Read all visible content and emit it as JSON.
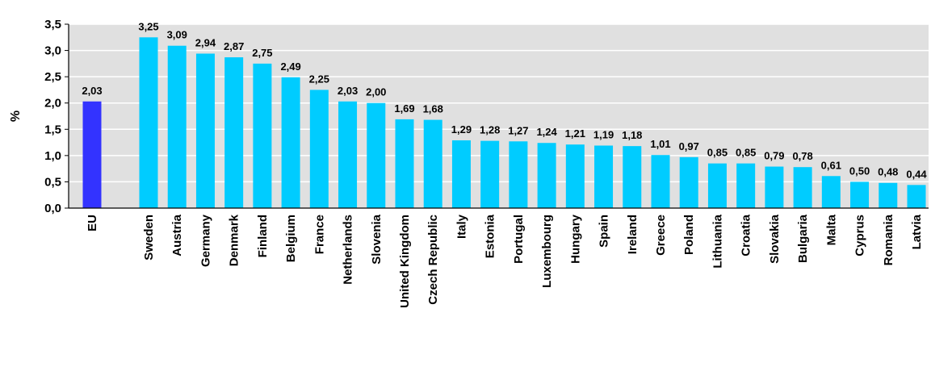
{
  "chart_data": {
    "type": "bar",
    "ylabel": "%",
    "ylim": [
      0,
      3.5
    ],
    "ytick_step": 0.5,
    "yticks": [
      "0,0",
      "0,5",
      "1,0",
      "1,5",
      "2,0",
      "2,5",
      "3,0",
      "3,5"
    ],
    "grid": true,
    "decimal_separator": ",",
    "colors": {
      "highlight": "#3333ff",
      "default": "#00ccff",
      "plot_background": "#e0e0e0",
      "gridline": "#ffffff"
    },
    "highlight_category": "EU",
    "categories": [
      "EU",
      "Sweden",
      "Austria",
      "Germany",
      "Denmark",
      "Finland",
      "Belgium",
      "France",
      "Netherlands",
      "Slovenia",
      "United Kingdom",
      "Czech Republic",
      "Italy",
      "Estonia",
      "Portugal",
      "Luxembourg",
      "Hungary",
      "Spain",
      "Ireland",
      "Greece",
      "Poland",
      "Lithuania",
      "Croatia",
      "Slovakia",
      "Bulgaria",
      "Malta",
      "Cyprus",
      "Romania",
      "Latvia"
    ],
    "values": [
      2.03,
      3.25,
      3.09,
      2.94,
      2.87,
      2.75,
      2.49,
      2.25,
      2.03,
      2.0,
      1.69,
      1.68,
      1.29,
      1.28,
      1.27,
      1.24,
      1.21,
      1.19,
      1.18,
      1.01,
      0.97,
      0.85,
      0.85,
      0.79,
      0.78,
      0.61,
      0.5,
      0.48,
      0.44
    ],
    "value_labels": [
      "2,03",
      "3,25",
      "3,09",
      "2,94",
      "2,87",
      "2,75",
      "2,49",
      "2,25",
      "2,03",
      "2,00",
      "1,69",
      "1,68",
      "1,29",
      "1,28",
      "1,27",
      "1,24",
      "1,21",
      "1,19",
      "1,18",
      "1,01",
      "0,97",
      "0,85",
      "0,85",
      "0,79",
      "0,78",
      "0,61",
      "0,50",
      "0,48",
      "0,44"
    ]
  }
}
